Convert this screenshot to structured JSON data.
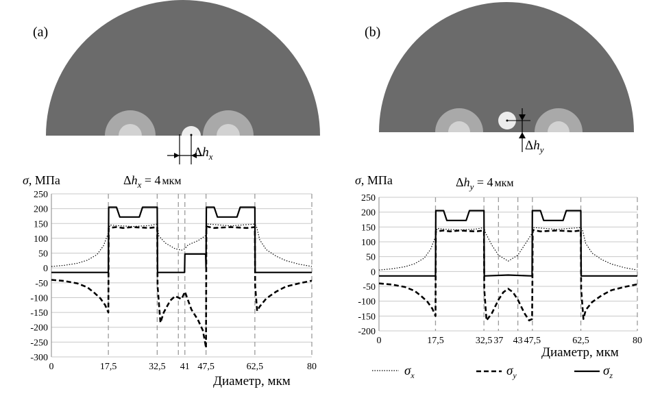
{
  "panels": [
    {
      "label": "(a)",
      "offset_label_var": "h",
      "offset_label_sub": "x",
      "annotation_value": "4",
      "annotation_unit": "мкм",
      "fiber": {
        "hole_x_um": 41,
        "hole_y_um": 0,
        "colors": {
          "cladding": "#6b6b6b",
          "stress_rod": "#a9a9a9",
          "stress_core": "#d2d2d2",
          "hole": "#ececec"
        }
      }
    },
    {
      "label": "(b)",
      "offset_label_var": "h",
      "offset_label_sub": "y",
      "annotation_value": "4",
      "annotation_unit": "мкм",
      "fiber": {
        "hole_x_um": 37,
        "hole_y_um": 4,
        "colors": {
          "cladding": "#6b6b6b",
          "stress_rod": "#a9a9a9",
          "stress_core": "#d2d2d2",
          "hole": "#ececec"
        }
      }
    }
  ],
  "chart_data": [
    {
      "type": "line",
      "ylabel_var": "σ",
      "ylabel_unit": "МПа",
      "xlabel": "Диаметр, мкм",
      "xlim": [
        0,
        80
      ],
      "ylim": [
        -300,
        250
      ],
      "yticks": [
        250,
        200,
        150,
        100,
        50,
        0,
        -50,
        -100,
        -150,
        -200,
        -250,
        -300
      ],
      "xticks": [
        {
          "v": 0,
          "label": "0"
        },
        {
          "v": 17.5,
          "label": "17,5"
        },
        {
          "v": 32.5,
          "label": "32,5"
        },
        {
          "v": 41,
          "label": "41"
        },
        {
          "v": 47.5,
          "label": "47,5"
        },
        {
          "v": 62.5,
          "label": "62,5"
        },
        {
          "v": 80,
          "label": "80"
        }
      ],
      "vlines": [
        17.5,
        32.5,
        39,
        41,
        47.5,
        62.5,
        80
      ],
      "series": [
        {
          "name": "σx",
          "style": "dotted",
          "x": [
            0,
            4,
            8,
            11,
            14,
            16,
            17.5,
            18,
            20,
            25,
            30,
            32.5,
            33,
            35,
            38,
            40,
            41,
            42,
            45,
            47.5,
            48,
            55,
            62.5,
            63,
            64,
            66,
            69,
            72,
            76,
            80
          ],
          "y": [
            5,
            9,
            16,
            26,
            45,
            75,
            118,
            145,
            143,
            140,
            143,
            148,
            108,
            84,
            65,
            60,
            65,
            78,
            92,
            110,
            148,
            142,
            148,
            140,
            95,
            62,
            40,
            25,
            13,
            5
          ]
        },
        {
          "name": "σy",
          "style": "dashed",
          "x": [
            0,
            4,
            8,
            11,
            13,
            15,
            16.5,
            17.5,
            17.6,
            20,
            22,
            25,
            30,
            32.5,
            32.6,
            33.5,
            34.5,
            36.5,
            38,
            40,
            41,
            43,
            45,
            46.5,
            47.2,
            47.5,
            47.6,
            50,
            55,
            60,
            62.5,
            62.6,
            63.2,
            64,
            66,
            69,
            72,
            76,
            80
          ],
          "y": [
            -40,
            -44,
            -52,
            -65,
            -82,
            -102,
            -125,
            -150,
            135,
            138,
            135,
            138,
            135,
            138,
            -60,
            -185,
            -150,
            -110,
            -95,
            -105,
            -80,
            -140,
            -175,
            -210,
            -250,
            -270,
            140,
            135,
            138,
            135,
            138,
            -60,
            -145,
            -130,
            -103,
            -80,
            -63,
            -52,
            -43
          ]
        },
        {
          "name": "σz",
          "style": "solid",
          "x": [
            0,
            16.8,
            17.5,
            17.6,
            20,
            21,
            23,
            27,
            28,
            30,
            32.5,
            32.6,
            36,
            40.9,
            41,
            47,
            47.4,
            47.5,
            47.6,
            50,
            51,
            53,
            57,
            58,
            60,
            62.5,
            62.6,
            66,
            80
          ],
          "y": [
            -15,
            -15,
            -15,
            205,
            205,
            172,
            172,
            172,
            205,
            205,
            205,
            -15,
            -15,
            -15,
            47,
            47,
            46,
            0,
            205,
            205,
            172,
            172,
            172,
            205,
            205,
            205,
            -15,
            -15,
            -15
          ]
        }
      ]
    },
    {
      "type": "line",
      "ylabel_var": "σ",
      "ylabel_unit": "МПа",
      "xlabel": "Диаметр, мкм",
      "xlim": [
        0,
        80
      ],
      "ylim": [
        -200,
        250
      ],
      "yticks": [
        250,
        200,
        150,
        100,
        50,
        0,
        -50,
        -100,
        -150,
        -200
      ],
      "xticks": [
        {
          "v": 0,
          "label": "0"
        },
        {
          "v": 17.5,
          "label": "17,5"
        },
        {
          "v": 32.5,
          "label": "32,5"
        },
        {
          "v": 37,
          "label": "37"
        },
        {
          "v": 43,
          "label": "43"
        },
        {
          "v": 47.5,
          "label": "47,5"
        },
        {
          "v": 62.5,
          "label": "62,5"
        },
        {
          "v": 80,
          "label": "80"
        }
      ],
      "vlines": [
        17.5,
        32.5,
        37,
        43,
        47.5,
        62.5,
        80
      ],
      "series": [
        {
          "name": "σx",
          "style": "dotted",
          "x": [
            0,
            4,
            8,
            11,
            14,
            16,
            17.5,
            18,
            20,
            25,
            30,
            32.5,
            33,
            35,
            37,
            40,
            43,
            45,
            47.5,
            48,
            55,
            62.5,
            63,
            64,
            66,
            69,
            72,
            76,
            80
          ],
          "y": [
            5,
            9,
            16,
            26,
            45,
            75,
            118,
            145,
            143,
            140,
            143,
            148,
            130,
            88,
            55,
            35,
            55,
            88,
            130,
            148,
            142,
            148,
            140,
            95,
            62,
            40,
            25,
            13,
            5
          ]
        },
        {
          "name": "σy",
          "style": "dashed",
          "x": [
            0,
            4,
            8,
            11,
            13,
            15,
            16.5,
            17.5,
            17.6,
            20,
            22,
            25,
            30,
            32.5,
            32.6,
            33.3,
            35,
            37,
            38.5,
            40,
            41.5,
            43,
            45,
            46.5,
            47.4,
            47.5,
            47.6,
            50,
            55,
            60,
            62.5,
            62.6,
            63.3,
            64,
            66,
            69,
            72,
            76,
            80
          ],
          "y": [
            -40,
            -44,
            -52,
            -65,
            -82,
            -102,
            -125,
            -150,
            135,
            138,
            135,
            138,
            135,
            138,
            -60,
            -165,
            -140,
            -95,
            -70,
            -58,
            -70,
            -95,
            -140,
            -165,
            -160,
            -60,
            140,
            135,
            138,
            135,
            138,
            -60,
            -160,
            -130,
            -103,
            -80,
            -63,
            -52,
            -43
          ]
        },
        {
          "name": "σz",
          "style": "solid",
          "x": [
            0,
            16.8,
            17.5,
            17.6,
            20,
            21,
            23,
            27,
            28,
            30,
            32.5,
            32.6,
            40,
            47.4,
            47.5,
            50,
            51,
            53,
            57,
            58,
            60,
            62.5,
            62.6,
            66,
            80
          ],
          "y": [
            -15,
            -15,
            -15,
            205,
            205,
            172,
            172,
            172,
            205,
            205,
            205,
            -15,
            -12,
            -15,
            205,
            205,
            172,
            172,
            172,
            205,
            205,
            205,
            -15,
            -15,
            -15
          ]
        }
      ]
    }
  ],
  "legend": [
    {
      "var": "σ",
      "sub": "x",
      "style": "dotted"
    },
    {
      "var": "σ",
      "sub": "y",
      "style": "dashed"
    },
    {
      "var": "σ",
      "sub": "z",
      "style": "solid"
    }
  ]
}
